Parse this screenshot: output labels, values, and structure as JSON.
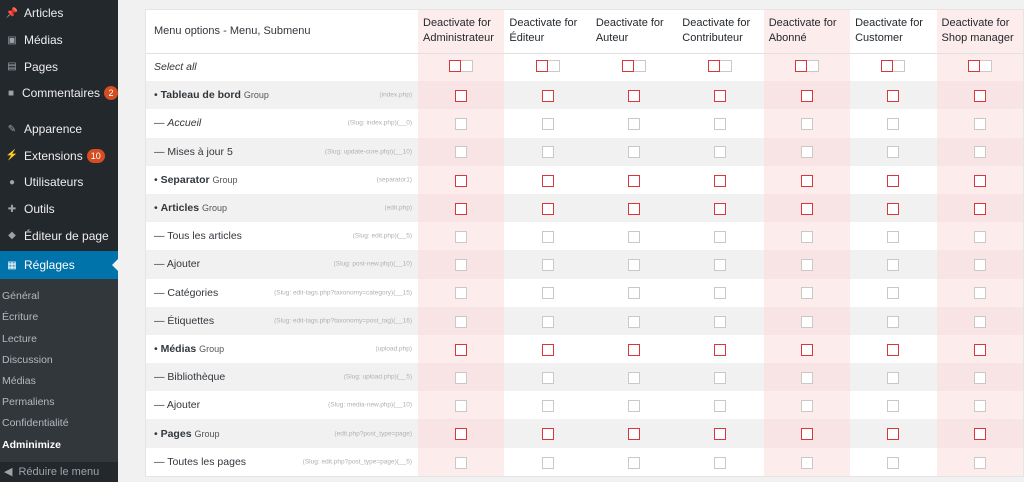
{
  "sidebar": {
    "items": [
      {
        "label": "Articles",
        "icon": "pin-icon"
      },
      {
        "label": "Médias",
        "icon": "media-icon"
      },
      {
        "label": "Pages",
        "icon": "pages-icon"
      },
      {
        "label": "Commentaires",
        "icon": "comment-icon",
        "badge": "2"
      },
      {
        "label": "Apparence",
        "icon": "brush-icon"
      },
      {
        "label": "Extensions",
        "icon": "plugin-icon",
        "badge": "10"
      },
      {
        "label": "Utilisateurs",
        "icon": "user-icon"
      },
      {
        "label": "Outils",
        "icon": "wrench-icon"
      },
      {
        "label": "Éditeur de page",
        "icon": "elephant-icon"
      },
      {
        "label": "Réglages",
        "icon": "settings-icon"
      }
    ],
    "submenu": [
      "Général",
      "Écriture",
      "Lecture",
      "Discussion",
      "Médias",
      "Permaliens",
      "Confidentialité",
      "Adminimize"
    ],
    "collapse_label": "Réduire le menu"
  },
  "table": {
    "header": "Menu options - Menu, Submenu",
    "roles": [
      "Deactivate for Administrateur",
      "Deactivate for Éditeur",
      "Deactivate for Auteur",
      "Deactivate for Contributeur",
      "Deactivate for Abonné",
      "Deactivate for Customer",
      "Deactivate for Shop manager"
    ],
    "select_all": "Select all",
    "rows": [
      {
        "label": "Tableau de bord",
        "kind": "group",
        "group": "Group",
        "slug": "(index.php)"
      },
      {
        "label": "Accueil",
        "kind": "sub-italic",
        "slug": "(Slug: index.php)(__0)"
      },
      {
        "label": "Mises à jour 5",
        "kind": "sub",
        "slug": "(Slug: update-core.php)(__10)"
      },
      {
        "label": "Separator",
        "kind": "group",
        "group": "Group",
        "slug": "(separator1)"
      },
      {
        "label": "Articles",
        "kind": "group",
        "group": "Group",
        "slug": "(edit.php)"
      },
      {
        "label": "Tous les articles",
        "kind": "sub",
        "slug": "(Slug: edit.php)(__5)"
      },
      {
        "label": "Ajouter",
        "kind": "sub",
        "slug": "(Slug: post-new.php)(__10)"
      },
      {
        "label": "Catégories",
        "kind": "sub",
        "slug": "(Slug: edit-tags.php?taxonomy=category)(__15)"
      },
      {
        "label": "Étiquettes",
        "kind": "sub",
        "slug": "(Slug: edit-tags.php?taxonomy=post_tag)(__16)"
      },
      {
        "label": "Médias",
        "kind": "group",
        "group": "Group",
        "slug": "(upload.php)"
      },
      {
        "label": "Bibliothèque",
        "kind": "sub",
        "slug": "(Slug: upload.php)(__5)"
      },
      {
        "label": "Ajouter",
        "kind": "sub",
        "slug": "(Slug: media-new.php)(__10)"
      },
      {
        "label": "Pages",
        "kind": "group",
        "group": "Group",
        "slug": "(edit.php?post_type=page)"
      },
      {
        "label": "Toutes les pages",
        "kind": "sub",
        "slug": "(Slug: edit.php?post_type=page)(__5)"
      }
    ]
  },
  "colors": {
    "accent": "#0073aa",
    "sidebar": "#23282d",
    "red": "#d9363e",
    "pink": "#fdecec"
  }
}
